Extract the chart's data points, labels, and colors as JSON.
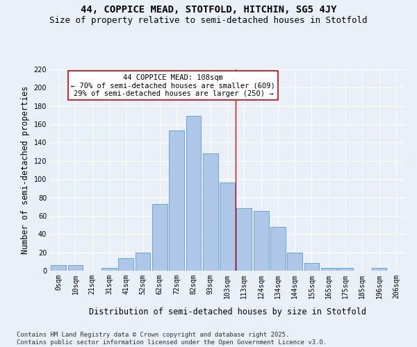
{
  "title": "44, COPPICE MEAD, STOTFOLD, HITCHIN, SG5 4JY",
  "subtitle": "Size of property relative to semi-detached houses in Stotfold",
  "xlabel": "Distribution of semi-detached houses by size in Stotfold",
  "ylabel": "Number of semi-detached properties",
  "categories": [
    "0sqm",
    "10sqm",
    "21sqm",
    "31sqm",
    "41sqm",
    "52sqm",
    "62sqm",
    "72sqm",
    "82sqm",
    "93sqm",
    "103sqm",
    "113sqm",
    "124sqm",
    "134sqm",
    "144sqm",
    "155sqm",
    "165sqm",
    "175sqm",
    "185sqm",
    "196sqm",
    "206sqm"
  ],
  "values": [
    6,
    6,
    0,
    3,
    14,
    20,
    73,
    153,
    169,
    128,
    96,
    68,
    65,
    48,
    20,
    8,
    3,
    3,
    0,
    3,
    0
  ],
  "bar_color": "#aec6e8",
  "bar_edgecolor": "#5b9bd5",
  "vline_x_index": 10.5,
  "annotation_title": "44 COPPICE MEAD: 108sqm",
  "annotation_line1": "← 70% of semi-detached houses are smaller (609)",
  "annotation_line2": "29% of semi-detached houses are larger (250) →",
  "annotation_box_color": "#ffffff",
  "annotation_box_edgecolor": "#cc0000",
  "vline_color": "#cc0000",
  "bg_color": "#eaf0f7",
  "grid_color": "#ffffff",
  "ylim": [
    0,
    220
  ],
  "yticks": [
    0,
    20,
    40,
    60,
    80,
    100,
    120,
    140,
    160,
    180,
    200,
    220
  ],
  "title_fontsize": 10,
  "subtitle_fontsize": 9,
  "axis_label_fontsize": 8.5,
  "tick_fontsize": 7,
  "annotation_fontsize": 7.5,
  "footer_fontsize": 6.5,
  "footer_line1": "Contains HM Land Registry data © Crown copyright and database right 2025.",
  "footer_line2": "Contains public sector information licensed under the Open Government Licence v3.0."
}
